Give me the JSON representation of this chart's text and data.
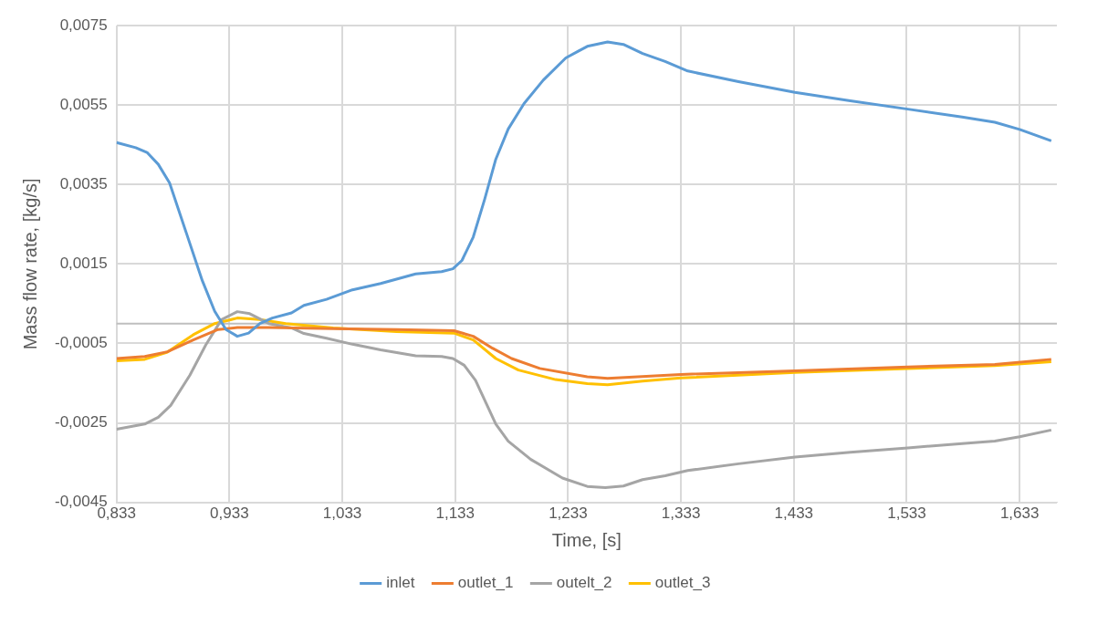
{
  "chart_data": {
    "type": "line",
    "xlabel": "Time, [s]",
    "ylabel": "Mass flow rate, [kg/s]",
    "xlim": [
      0.833,
      1.666
    ],
    "ylim": [
      -0.0045,
      0.0075
    ],
    "xticks": [
      {
        "value": 0.833,
        "label": "0,833"
      },
      {
        "value": 0.933,
        "label": "0,933"
      },
      {
        "value": 1.033,
        "label": "1,033"
      },
      {
        "value": 1.133,
        "label": "1,133"
      },
      {
        "value": 1.233,
        "label": "1,233"
      },
      {
        "value": 1.333,
        "label": "1,333"
      },
      {
        "value": 1.433,
        "label": "1,433"
      },
      {
        "value": 1.533,
        "label": "1,533"
      },
      {
        "value": 1.633,
        "label": "1,633"
      }
    ],
    "yticks": [
      {
        "value": -0.0045,
        "label": "-0,0045"
      },
      {
        "value": -0.0025,
        "label": "-0,0025"
      },
      {
        "value": -0.0005,
        "label": "-0,0005"
      },
      {
        "value": 0.0015,
        "label": "0,0015"
      },
      {
        "value": 0.0035,
        "label": "0,0035"
      },
      {
        "value": 0.0055,
        "label": "0,0055"
      },
      {
        "value": 0.0075,
        "label": "0,0075"
      }
    ],
    "grid": true,
    "legend": "bottom",
    "marker": "none",
    "line_style": "solid",
    "series": [
      {
        "name": "inlet",
        "color": "#5b9bd5",
        "x": [
          0.833,
          0.85,
          0.86,
          0.87,
          0.88,
          0.895,
          0.909,
          0.92,
          0.93,
          0.94,
          0.95,
          0.96,
          0.971,
          0.988,
          0.999,
          1.019,
          1.042,
          1.067,
          1.098,
          1.121,
          1.131,
          1.139,
          1.149,
          1.159,
          1.169,
          1.18,
          1.194,
          1.211,
          1.231,
          1.242,
          1.25,
          1.268,
          1.282,
          1.299,
          1.319,
          1.339,
          1.384,
          1.434,
          1.483,
          1.534,
          1.582,
          1.611,
          1.633,
          1.661
        ],
        "values": [
          0.00456,
          0.00443,
          0.00431,
          0.00401,
          0.00354,
          0.00227,
          0.00108,
          0.00031,
          -0.00015,
          -0.00032,
          -0.00024,
          0,
          0.00014,
          0.00027,
          0.00046,
          0.00061,
          0.00085,
          0.00101,
          0.00125,
          0.00131,
          0.00138,
          0.00159,
          0.00218,
          0.00312,
          0.00414,
          0.0049,
          0.00554,
          0.00613,
          0.00669,
          0.00686,
          0.00698,
          0.00709,
          0.00703,
          0.0068,
          0.0066,
          0.00636,
          0.00609,
          0.00582,
          0.00561,
          0.0054,
          0.0052,
          0.00507,
          0.00489,
          0.0046
        ]
      },
      {
        "name": "outlet_1",
        "color": "#ed7d31",
        "x": [
          0.833,
          0.858,
          0.878,
          0.901,
          0.923,
          0.94,
          0.968,
          1.025,
          1.081,
          1.132,
          1.149,
          1.166,
          1.183,
          1.208,
          1.25,
          1.268,
          1.333,
          1.434,
          1.534,
          1.611,
          1.661
        ],
        "values": [
          -0.00088,
          -0.00083,
          -0.00071,
          -0.00041,
          -0.00015,
          -0.0001,
          -0.0001,
          -0.00013,
          -0.00015,
          -0.00018,
          -0.00032,
          -0.00062,
          -0.00088,
          -0.00113,
          -0.00134,
          -0.00138,
          -0.00128,
          -0.00119,
          -0.00109,
          -0.00103,
          -0.0009
        ]
      },
      {
        "name": "outelt_2",
        "color": "#a5a5a5",
        "x": [
          0.833,
          0.858,
          0.87,
          0.881,
          0.898,
          0.912,
          0.926,
          0.94,
          0.951,
          0.968,
          0.988,
          0.999,
          1.019,
          1.042,
          1.067,
          1.098,
          1.121,
          1.131,
          1.141,
          1.151,
          1.169,
          1.18,
          1.2,
          1.228,
          1.25,
          1.266,
          1.282,
          1.299,
          1.319,
          1.339,
          1.384,
          1.434,
          1.483,
          1.534,
          1.582,
          1.611,
          1.633,
          1.661
        ],
        "values": [
          -0.00266,
          -0.00253,
          -0.00236,
          -0.00206,
          -0.0013,
          -0.00054,
          0.0001,
          0.0003,
          0.00025,
          0,
          -0.00011,
          -0.00025,
          -0.00037,
          -0.00052,
          -0.00066,
          -0.00081,
          -0.00083,
          -0.00088,
          -0.00105,
          -0.00143,
          -0.00253,
          -0.00296,
          -0.00342,
          -0.00389,
          -0.0041,
          -0.00413,
          -0.00409,
          -0.00393,
          -0.00383,
          -0.0037,
          -0.00353,
          -0.00336,
          -0.00324,
          -0.00313,
          -0.00302,
          -0.00296,
          -0.00285,
          -0.00268
        ]
      },
      {
        "name": "outlet_3",
        "color": "#ffc000",
        "x": [
          0.833,
          0.858,
          0.878,
          0.901,
          0.92,
          0.94,
          0.96,
          0.983,
          1.025,
          1.081,
          1.132,
          1.149,
          1.169,
          1.189,
          1.222,
          1.25,
          1.268,
          1.299,
          1.333,
          1.434,
          1.534,
          1.611,
          1.661
        ],
        "values": [
          -0.00094,
          -0.0009,
          -0.00072,
          -0.00028,
          0,
          0.00014,
          0.0001,
          0,
          -0.00011,
          -0.0002,
          -0.00024,
          -0.00041,
          -0.00088,
          -0.00117,
          -0.00141,
          -0.00151,
          -0.00154,
          -0.00145,
          -0.00137,
          -0.00123,
          -0.00113,
          -0.00106,
          -0.00096
        ]
      }
    ]
  }
}
